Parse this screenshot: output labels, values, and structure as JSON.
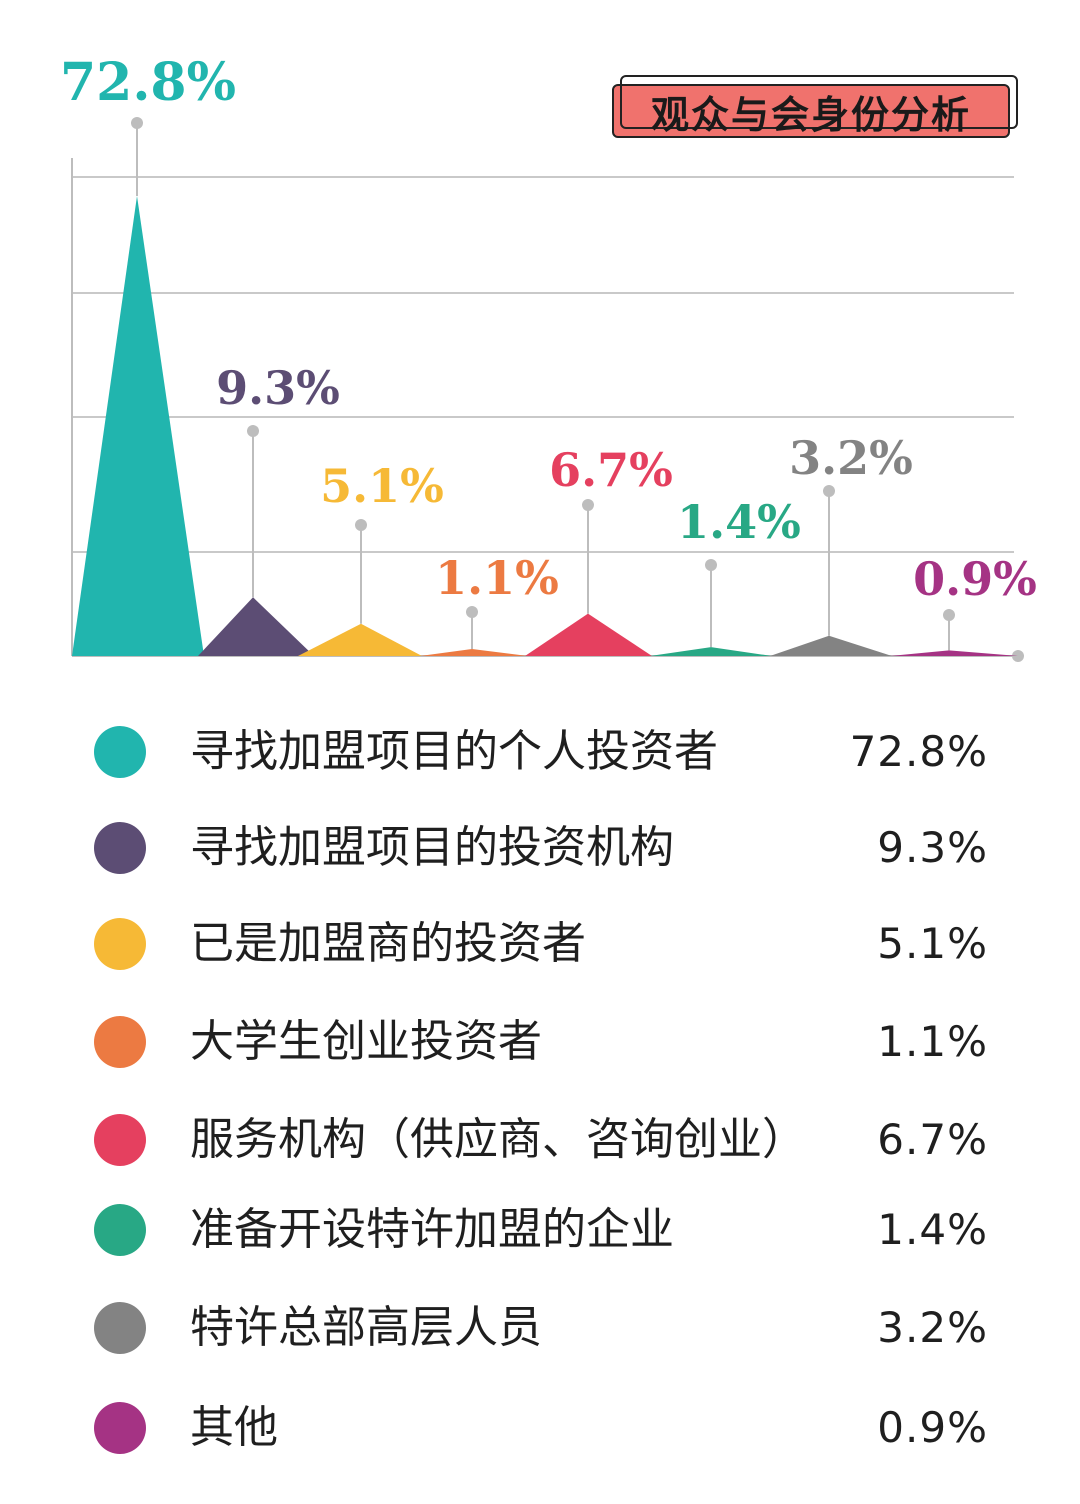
{
  "title": "观众与会身份分析",
  "chart_data": {
    "type": "area",
    "categories": [
      "寻找加盟项目的个人投资者",
      "寻找加盟项目的投资机构",
      "已是加盟商的投资者",
      "大学生创业投资者",
      "服务机构（供应商、咨询创业）",
      "准备开设特许加盟的企业",
      "特许总部高层人员",
      "其他"
    ],
    "values": [
      72.8,
      9.3,
      5.1,
      1.1,
      6.7,
      1.4,
      3.2,
      0.9
    ],
    "value_labels": [
      "72.8%",
      "9.3%",
      "5.1%",
      "1.1%",
      "6.7%",
      "1.4%",
      "3.2%",
      "0.9%"
    ],
    "colors": [
      "#21b5ae",
      "#5c4d74",
      "#f6b936",
      "#ec7a42",
      "#e5405f",
      "#28a885",
      "#838383",
      "#a53384"
    ],
    "grid": true,
    "legend": "bottom"
  }
}
